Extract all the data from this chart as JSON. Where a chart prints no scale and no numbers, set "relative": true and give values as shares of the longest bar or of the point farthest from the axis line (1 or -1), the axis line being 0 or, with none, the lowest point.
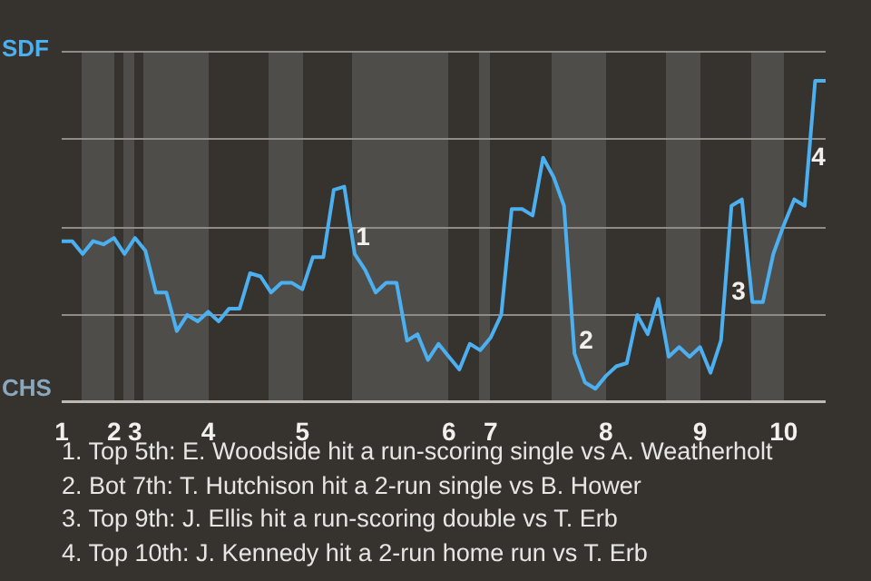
{
  "chart_data": {
    "type": "line",
    "relative": true,
    "categories": [
      "1",
      null,
      null,
      null,
      null,
      "2",
      null,
      "3",
      null,
      null,
      null,
      null,
      null,
      null,
      "4",
      null,
      null,
      null,
      null,
      null,
      null,
      null,
      null,
      "5",
      null,
      null,
      null,
      null,
      null,
      null,
      null,
      null,
      null,
      null,
      null,
      null,
      null,
      "6",
      null,
      null,
      null,
      "7",
      null,
      null,
      null,
      null,
      null,
      null,
      null,
      null,
      null,
      null,
      "8",
      null,
      null,
      null,
      null,
      null,
      null,
      null,
      null,
      "9",
      null,
      null,
      null,
      null,
      null,
      null,
      null,
      "10",
      null,
      null,
      null,
      null
    ],
    "series": [
      {
        "color": "#4cb0f0",
        "values": [
          0.5,
          0.5,
          0.46,
          0.5,
          0.49,
          0.51,
          0.46,
          0.51,
          0.47,
          0.34,
          0.34,
          0.22,
          0.27,
          0.25,
          0.28,
          0.25,
          0.29,
          0.29,
          0.4,
          0.39,
          0.34,
          0.37,
          0.37,
          0.35,
          0.45,
          0.45,
          0.66,
          0.67,
          0.46,
          0.41,
          0.34,
          0.37,
          0.37,
          0.19,
          0.21,
          0.13,
          0.18,
          0.14,
          0.1,
          0.18,
          0.16,
          0.2,
          0.27,
          0.6,
          0.6,
          0.58,
          0.76,
          0.7,
          0.61,
          0.15,
          0.06,
          0.04,
          0.08,
          0.11,
          0.12,
          0.27,
          0.21,
          0.32,
          0.14,
          0.17,
          0.14,
          0.17,
          0.09,
          0.19,
          0.61,
          0.63,
          0.31,
          0.31,
          0.46,
          0.55,
          0.63,
          0.61,
          1,
          1
        ]
      }
    ],
    "grid": "y",
    "marker": "none",
    "annotations": [
      "SDF",
      "CHS",
      "1",
      "2",
      "3",
      "4",
      "1. Top 5th: E. Woodside hit a run-scoring single vs A. Weatherholt",
      "2. Bot 7th: T. Hutchison hit a 2-run single vs B. Hower",
      "3. Top 9th: J. Ellis hit a run-scoring double vs T. Erb",
      "4. Top 10th: J. Kennedy hit a 2-run home run vs T. Erb"
    ]
  }
}
